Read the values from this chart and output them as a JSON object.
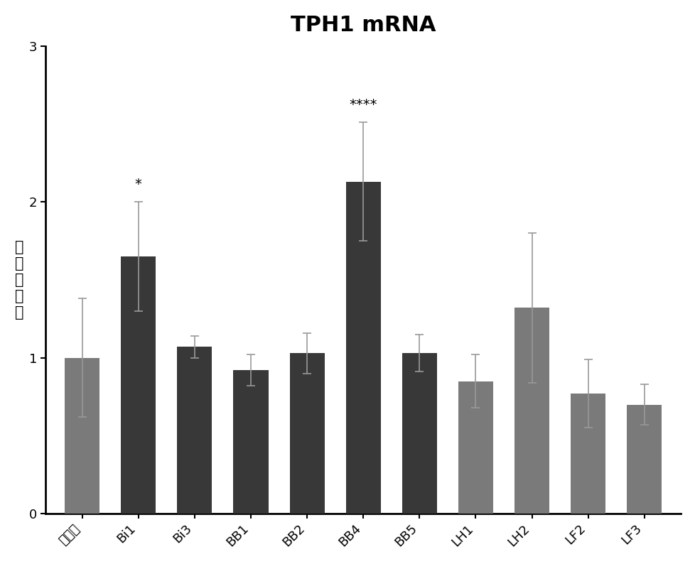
{
  "title": "TPH1 mRNA",
  "ylabel": "相对表达量",
  "categories": [
    "对照组",
    "Bi1",
    "Bi3",
    "BB1",
    "BB2",
    "BB4",
    "BB5",
    "LH1",
    "LH2",
    "LF2",
    "LF3"
  ],
  "values": [
    1.0,
    1.65,
    1.07,
    0.92,
    1.03,
    2.13,
    1.03,
    0.85,
    1.32,
    0.77,
    0.7
  ],
  "errors": [
    0.38,
    0.35,
    0.07,
    0.1,
    0.13,
    0.38,
    0.12,
    0.17,
    0.48,
    0.22,
    0.13
  ],
  "bar_colors": [
    "#7a7a7a",
    "#383838",
    "#383838",
    "#383838",
    "#383838",
    "#383838",
    "#383838",
    "#7a7a7a",
    "#7a7a7a",
    "#7a7a7a",
    "#7a7a7a"
  ],
  "significance": [
    "",
    "*",
    "",
    "",
    "",
    "****",
    "",
    "",
    "",
    "",
    ""
  ],
  "ylim": [
    0,
    3
  ],
  "yticks": [
    0,
    1,
    2,
    3
  ],
  "title_fontsize": 22,
  "axis_fontsize": 15,
  "tick_fontsize": 13,
  "sig_fontsize": 14,
  "background_color": "#ffffff",
  "error_color": "#999999"
}
